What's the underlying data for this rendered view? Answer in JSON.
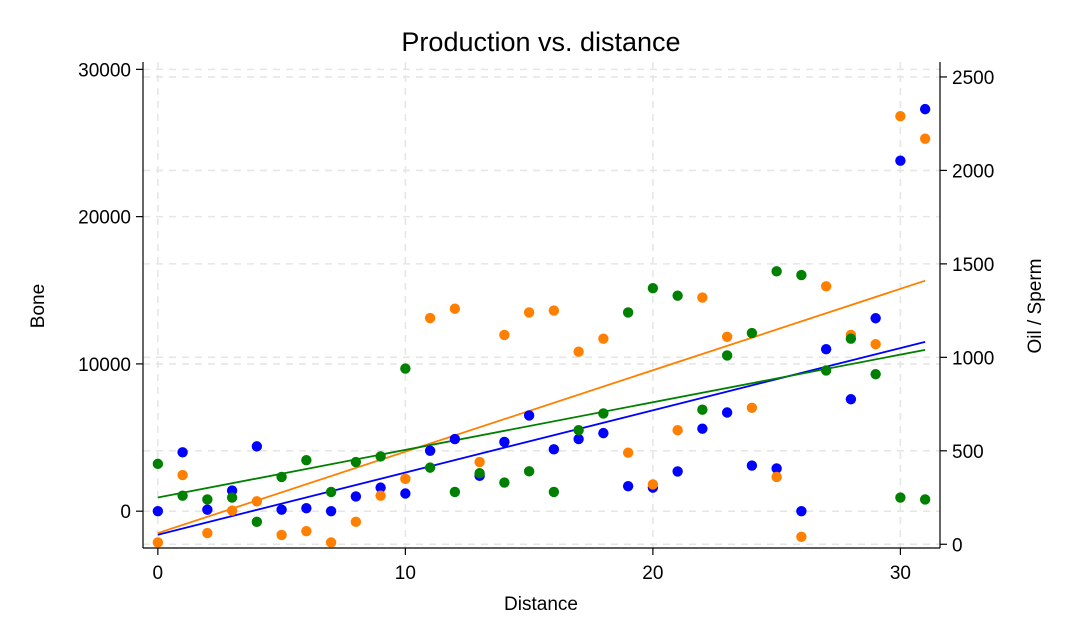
{
  "chart_data": {
    "type": "scatter",
    "title": "Production vs. distance",
    "xlabel": "Distance",
    "ylabel_left": "Bone",
    "ylabel_right": "Oil / Sperm",
    "xlim": [
      -0.6,
      31.6
    ],
    "ylim_left": [
      -2500,
      30500
    ],
    "ylim_right": [
      -20,
      2580
    ],
    "xticks": [
      0,
      10,
      20,
      30
    ],
    "yticks_left": [
      0,
      10000,
      20000,
      30000
    ],
    "yticks_right": [
      0,
      500,
      1000,
      1500,
      2000,
      2500
    ],
    "grid": true,
    "colors": {
      "bone": "#0000ff",
      "oil": "#ff7f00",
      "sperm": "#008000"
    },
    "series": [
      {
        "key": "bone",
        "axis": "left",
        "x": [
          0,
          1,
          2,
          3,
          4,
          5,
          6,
          7,
          8,
          9,
          10,
          11,
          12,
          13,
          14,
          15,
          16,
          17,
          18,
          19,
          20,
          21,
          22,
          23,
          24,
          25,
          26,
          27,
          28,
          29,
          30,
          31
        ],
        "y": [
          0,
          4000,
          100,
          1400,
          4400,
          100,
          200,
          0,
          1000,
          1600,
          1200,
          4100,
          4900,
          2400,
          4700,
          6500,
          4200,
          4900,
          5300,
          1700,
          1600,
          2700,
          5600,
          6700,
          3100,
          2900,
          0,
          11000,
          7600,
          13100,
          23800,
          27300
        ],
        "trend": [
          -1600,
          11500
        ]
      },
      {
        "key": "oil",
        "axis": "right",
        "x": [
          0,
          1,
          2,
          3,
          4,
          5,
          6,
          7,
          8,
          9,
          10,
          11,
          12,
          13,
          14,
          15,
          16,
          17,
          18,
          19,
          20,
          21,
          22,
          23,
          24,
          25,
          26,
          27,
          28,
          29,
          30,
          31
        ],
        "y": [
          10,
          370,
          60,
          180,
          230,
          50,
          70,
          10,
          120,
          260,
          350,
          1210,
          1260,
          440,
          1120,
          1240,
          1250,
          1030,
          1100,
          490,
          320,
          610,
          1320,
          1110,
          730,
          360,
          40,
          1380,
          1120,
          1070,
          2290,
          2170
        ],
        "trend": [
          60,
          1410
        ]
      },
      {
        "key": "sperm",
        "axis": "right",
        "x": [
          0,
          1,
          2,
          3,
          4,
          5,
          6,
          7,
          8,
          9,
          10,
          11,
          12,
          13,
          14,
          15,
          16,
          17,
          18,
          19,
          20,
          21,
          22,
          23,
          24,
          25,
          26,
          27,
          28,
          29,
          30,
          31
        ],
        "y": [
          430,
          260,
          240,
          250,
          120,
          360,
          450,
          280,
          440,
          470,
          940,
          410,
          280,
          380,
          330,
          390,
          280,
          610,
          700,
          1240,
          1370,
          1330,
          720,
          1010,
          1130,
          1460,
          1440,
          930,
          1100,
          910,
          250,
          240
        ],
        "trend": [
          250,
          1040
        ]
      }
    ]
  }
}
